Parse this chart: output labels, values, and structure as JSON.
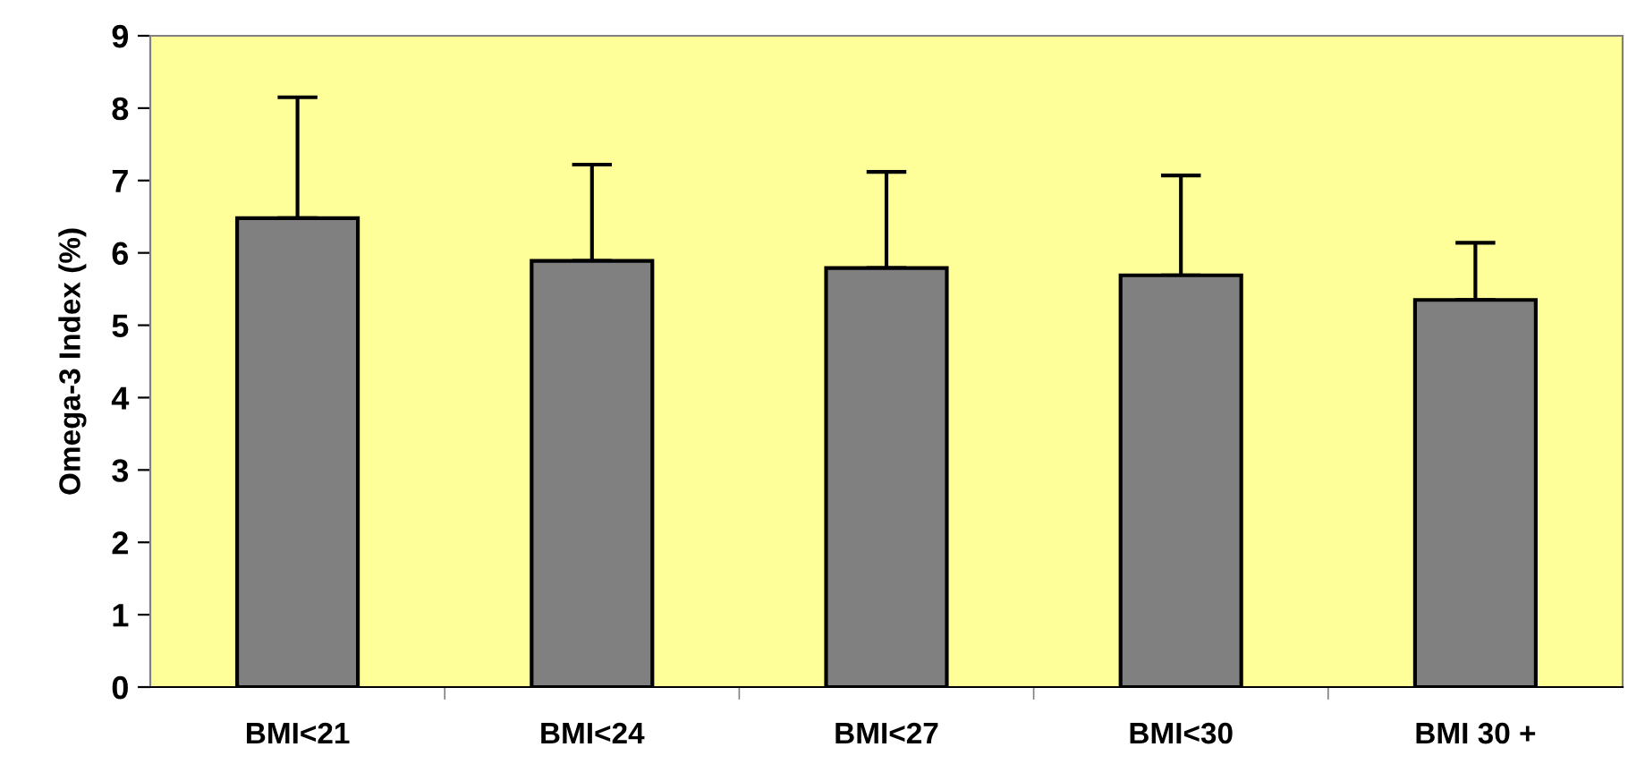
{
  "chart_data": {
    "type": "bar",
    "ylabel": "Omega-3 Index (%)",
    "categories": [
      "BMI<21",
      "BMI<24",
      "BMI<27",
      "BMI<30",
      "BMI 30 +"
    ],
    "values": [
      6.48,
      5.89,
      5.79,
      5.69,
      5.35
    ],
    "errors": [
      [
        6.48,
        8.15
      ],
      [
        5.89,
        7.22
      ],
      [
        5.79,
        7.12
      ],
      [
        5.69,
        7.07
      ],
      [
        5.35,
        6.14
      ]
    ],
    "color": "#808080",
    "ylim": [
      0,
      9
    ],
    "yticks": [
      0,
      1,
      2,
      3,
      4,
      5,
      6,
      7,
      8,
      9
    ],
    "grid": false,
    "legend": false
  }
}
